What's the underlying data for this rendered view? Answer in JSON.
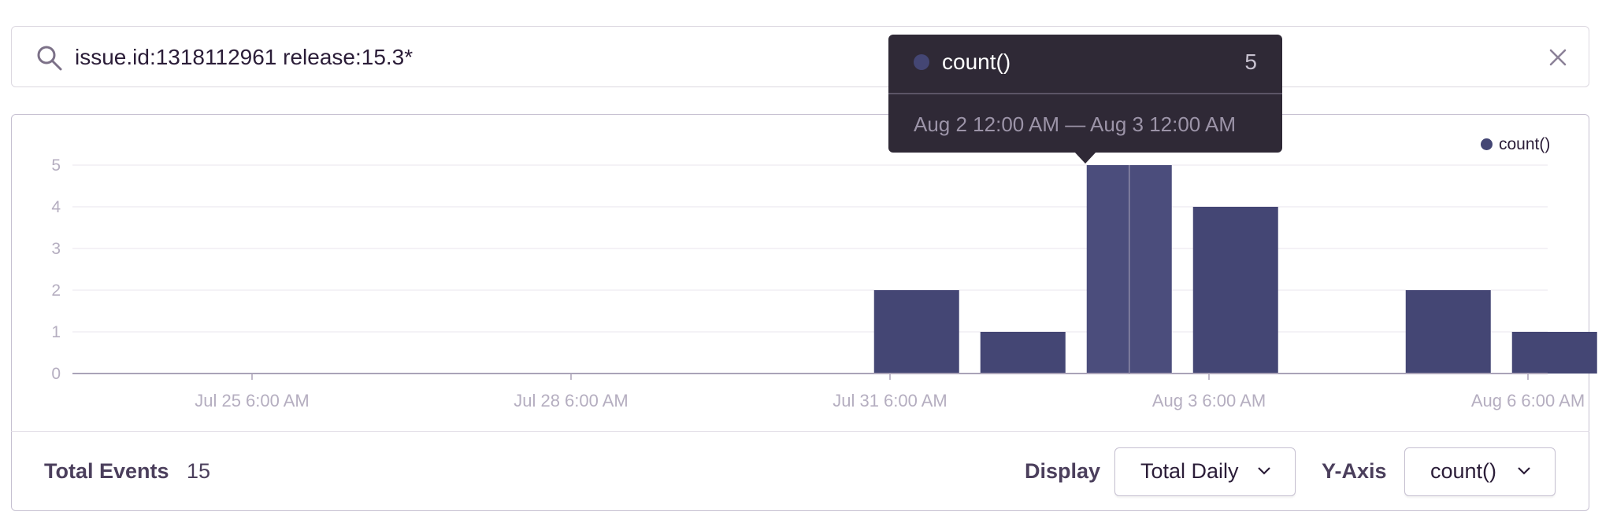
{
  "search": {
    "query": "issue.id:1318112961 release:15.3*",
    "icon": "search-icon",
    "clear_icon": "close-icon"
  },
  "chart_data": {
    "type": "bar",
    "series": [
      {
        "name": "count()",
        "color": "#444674",
        "points": [
          {
            "x": "2021-07-31",
            "y": 2
          },
          {
            "x": "2021-08-01",
            "y": 1
          },
          {
            "x": "2021-08-02",
            "y": 5
          },
          {
            "x": "2021-08-03",
            "y": 4
          },
          {
            "x": "2021-08-05",
            "y": 2
          },
          {
            "x": "2021-08-06",
            "y": 1
          }
        ]
      }
    ],
    "x_tick_labels": [
      "Jul 25 6:00 AM",
      "Jul 28 6:00 AM",
      "Jul 31 6:00 AM",
      "Aug 3 6:00 AM",
      "Aug 6 6:00 AM"
    ],
    "y_tick_labels": [
      "0",
      "1",
      "2",
      "3",
      "4",
      "5"
    ],
    "ylim": [
      0,
      5
    ],
    "grid": true,
    "legend": "top-right"
  },
  "legend": {
    "label": "count()"
  },
  "tooltip": {
    "series": "count()",
    "value": "5",
    "range": "Aug 2 12:00 AM — Aug 3 12:00 AM"
  },
  "footer": {
    "total_label": "Total Events",
    "total_value": "15",
    "display_label": "Display",
    "display_value": "Total Daily",
    "yaxis_label": "Y-Axis",
    "yaxis_value": "count()"
  },
  "colors": {
    "bar": "#444674",
    "bar_highlight": "#4b4d7c",
    "tooltip_bg": "#2f2936",
    "axis_text": "#b5aec0"
  }
}
